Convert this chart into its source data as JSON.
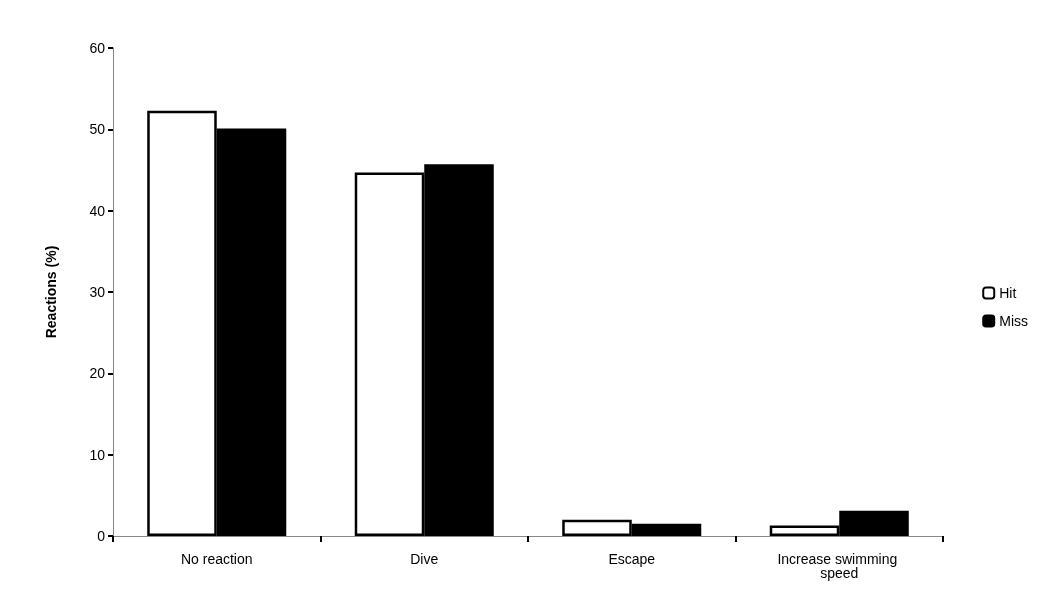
{
  "chart_data": {
    "type": "bar",
    "ylabel": "Reactions (%)",
    "categories": [
      "No reaction",
      "Dive",
      "Escape",
      "Increase swimming speed"
    ],
    "series": [
      {
        "name": "Hit",
        "color": "#ffffff",
        "values": [
          52.3,
          44.7,
          2.0,
          1.3
        ]
      },
      {
        "name": "Miss",
        "color": "#000000",
        "values": [
          50.1,
          45.7,
          1.5,
          3.1
        ]
      }
    ],
    "ylim": [
      0,
      60
    ],
    "yticks": [
      0,
      10,
      20,
      30,
      40,
      50,
      60
    ],
    "grid": false,
    "legend": "right"
  }
}
